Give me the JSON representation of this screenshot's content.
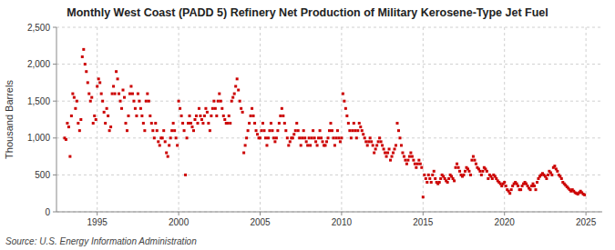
{
  "chart_data": {
    "type": "scatter",
    "title": "Monthly West Coast (PADD 5) Refinery Net Production of Military Kerosene-Type Jet Fuel",
    "y_label": "Thousand Barrels",
    "annotations": [
      "Source: U.S. Energy Information Administration"
    ],
    "color": "#cc0000",
    "marker": "square",
    "grid": true,
    "xlim": [
      1992.5,
      2026.0
    ],
    "ylim": [
      0,
      2500
    ],
    "xticks": [
      1995,
      2000,
      2005,
      2010,
      2015,
      2020,
      2025
    ],
    "yticks": [
      0,
      500,
      {
        "value": 1000,
        "label": "1,000"
      },
      {
        "value": 1500,
        "label": "1,500"
      },
      {
        "value": 2000,
        "label": "2,000"
      },
      {
        "value": 2500,
        "label": "2,500"
      }
    ],
    "x": [
      1993.0,
      1993.083,
      1993.167,
      1993.25,
      1993.333,
      1993.417,
      1993.5,
      1993.583,
      1993.667,
      1993.75,
      1993.833,
      1993.917,
      1994.0,
      1994.083,
      1994.167,
      1994.25,
      1994.333,
      1994.417,
      1994.5,
      1994.583,
      1994.667,
      1994.75,
      1994.833,
      1994.917,
      1995.0,
      1995.083,
      1995.167,
      1995.25,
      1995.333,
      1995.417,
      1995.5,
      1995.583,
      1995.667,
      1995.75,
      1995.833,
      1995.917,
      1996.0,
      1996.083,
      1996.167,
      1996.25,
      1996.333,
      1996.417,
      1996.5,
      1996.583,
      1996.667,
      1996.75,
      1996.833,
      1996.917,
      1997.0,
      1997.083,
      1997.167,
      1997.25,
      1997.333,
      1997.417,
      1997.5,
      1997.583,
      1997.667,
      1997.75,
      1997.833,
      1997.917,
      1998.0,
      1998.083,
      1998.167,
      1998.25,
      1998.333,
      1998.417,
      1998.5,
      1998.583,
      1998.667,
      1998.75,
      1998.833,
      1998.917,
      1999.0,
      1999.083,
      1999.167,
      1999.25,
      1999.333,
      1999.417,
      1999.5,
      1999.583,
      1999.667,
      1999.75,
      1999.833,
      1999.917,
      2000.0,
      2000.083,
      2000.167,
      2000.25,
      2000.333,
      2000.417,
      2000.5,
      2000.583,
      2000.667,
      2000.75,
      2000.833,
      2000.917,
      2001.0,
      2001.083,
      2001.167,
      2001.25,
      2001.333,
      2001.417,
      2001.5,
      2001.583,
      2001.667,
      2001.75,
      2001.833,
      2001.917,
      2002.0,
      2002.083,
      2002.167,
      2002.25,
      2002.333,
      2002.417,
      2002.5,
      2002.583,
      2002.667,
      2002.75,
      2002.833,
      2002.917,
      2003.0,
      2003.083,
      2003.167,
      2003.25,
      2003.333,
      2003.417,
      2003.5,
      2003.583,
      2003.667,
      2003.75,
      2003.833,
      2003.917,
      2004.0,
      2004.083,
      2004.167,
      2004.25,
      2004.333,
      2004.417,
      2004.5,
      2004.583,
      2004.667,
      2004.75,
      2004.833,
      2004.917,
      2005.0,
      2005.083,
      2005.167,
      2005.25,
      2005.333,
      2005.417,
      2005.5,
      2005.583,
      2005.667,
      2005.75,
      2005.833,
      2005.917,
      2006.0,
      2006.083,
      2006.167,
      2006.25,
      2006.333,
      2006.417,
      2006.5,
      2006.583,
      2006.667,
      2006.75,
      2006.833,
      2006.917,
      2007.0,
      2007.083,
      2007.167,
      2007.25,
      2007.333,
      2007.417,
      2007.5,
      2007.583,
      2007.667,
      2007.75,
      2007.833,
      2007.917,
      2008.0,
      2008.083,
      2008.167,
      2008.25,
      2008.333,
      2008.417,
      2008.5,
      2008.583,
      2008.667,
      2008.75,
      2008.833,
      2008.917,
      2009.0,
      2009.083,
      2009.167,
      2009.25,
      2009.333,
      2009.417,
      2009.5,
      2009.583,
      2009.667,
      2009.75,
      2009.833,
      2009.917,
      2010.0,
      2010.083,
      2010.167,
      2010.25,
      2010.333,
      2010.417,
      2010.5,
      2010.583,
      2010.667,
      2010.75,
      2010.833,
      2010.917,
      2011.0,
      2011.083,
      2011.167,
      2011.25,
      2011.333,
      2011.417,
      2011.5,
      2011.583,
      2011.667,
      2011.75,
      2011.833,
      2011.917,
      2012.0,
      2012.083,
      2012.167,
      2012.25,
      2012.333,
      2012.417,
      2012.5,
      2012.583,
      2012.667,
      2012.75,
      2012.833,
      2012.917,
      2013.0,
      2013.083,
      2013.167,
      2013.25,
      2013.333,
      2013.417,
      2013.5,
      2013.583,
      2013.667,
      2013.75,
      2013.833,
      2013.917,
      2014.0,
      2014.083,
      2014.167,
      2014.25,
      2014.333,
      2014.417,
      2014.5,
      2014.583,
      2014.667,
      2014.75,
      2014.833,
      2014.917,
      2015.0,
      2015.083,
      2015.167,
      2015.25,
      2015.333,
      2015.417,
      2015.5,
      2015.583,
      2015.667,
      2015.75,
      2015.833,
      2015.917,
      2016.0,
      2016.083,
      2016.167,
      2016.25,
      2016.333,
      2016.417,
      2016.5,
      2016.583,
      2016.667,
      2016.75,
      2016.833,
      2016.917,
      2017.0,
      2017.083,
      2017.167,
      2017.25,
      2017.333,
      2017.417,
      2017.5,
      2017.583,
      2017.667,
      2017.75,
      2017.833,
      2017.917,
      2018.0,
      2018.083,
      2018.167,
      2018.25,
      2018.333,
      2018.417,
      2018.5,
      2018.583,
      2018.667,
      2018.75,
      2018.833,
      2018.917,
      2019.0,
      2019.083,
      2019.167,
      2019.25,
      2019.333,
      2019.417,
      2019.5,
      2019.583,
      2019.667,
      2019.75,
      2019.833,
      2019.917,
      2020.0,
      2020.083,
      2020.167,
      2020.25,
      2020.333,
      2020.417,
      2020.5,
      2020.583,
      2020.667,
      2020.75,
      2020.833,
      2020.917,
      2021.0,
      2021.083,
      2021.167,
      2021.25,
      2021.333,
      2021.417,
      2021.5,
      2021.583,
      2021.667,
      2021.75,
      2021.833,
      2021.917,
      2022.0,
      2022.083,
      2022.167,
      2022.25,
      2022.333,
      2022.417,
      2022.5,
      2022.583,
      2022.667,
      2022.75,
      2022.833,
      2022.917,
      2023.0,
      2023.083,
      2023.167,
      2023.25,
      2023.333,
      2023.417,
      2023.5,
      2023.583,
      2023.667,
      2023.75,
      2023.833,
      2023.917,
      2024.0,
      2024.083,
      2024.167,
      2024.25,
      2024.333,
      2024.417,
      2024.5,
      2024.583,
      2024.667,
      2024.75,
      2024.833,
      2024.917
    ],
    "values": [
      1000,
      980,
      1200,
      1150,
      750,
      1300,
      1600,
      1550,
      1400,
      1500,
      1200,
      1100,
      1250,
      2100,
      2200,
      2000,
      1900,
      1750,
      1600,
      1500,
      1550,
      1200,
      1300,
      1250,
      1700,
      1800,
      1750,
      1600,
      1500,
      1350,
      1200,
      1400,
      1300,
      1100,
      1150,
      1600,
      1700,
      1600,
      1900,
      1800,
      1600,
      1500,
      1400,
      1650,
      1550,
      1200,
      1100,
      1300,
      1600,
      1700,
      1600,
      1500,
      1400,
      1300,
      1600,
      1500,
      1400,
      1300,
      1200,
      1100,
      1500,
      1600,
      1500,
      1300,
      1200,
      1100,
      1000,
      1200,
      1100,
      950,
      900,
      1000,
      1000,
      1100,
      950,
      800,
      750,
      900,
      1000,
      1100,
      1200,
      1100,
      1000,
      900,
      1500,
      1400,
      1300,
      1200,
      1100,
      500,
      1000,
      1200,
      1300,
      1200,
      1150,
      1100,
      1250,
      1300,
      1200,
      1400,
      1300,
      1250,
      1200,
      1300,
      1400,
      1350,
      1200,
      1100,
      1300,
      1400,
      1500,
      1400,
      1300,
      1500,
      1600,
      1500,
      1400,
      1300,
      1250,
      1200,
      1200,
      1300,
      1200,
      1500,
      1550,
      1600,
      1700,
      1800,
      1650,
      1500,
      1400,
      1350,
      800,
      900,
      1000,
      1100,
      1200,
      1300,
      1400,
      1300,
      1200,
      1100,
      1050,
      1000,
      1000,
      1100,
      1200,
      1100,
      1000,
      900,
      1000,
      1100,
      1200,
      1100,
      1000,
      950,
      1000,
      1100,
      1200,
      1300,
      1400,
      1300,
      1200,
      1100,
      1000,
      900,
      950,
      1000,
      1000,
      1050,
      1100,
      1200,
      1100,
      1000,
      900,
      1000,
      1100,
      1000,
      950,
      900,
      1000,
      900,
      1000,
      1100,
      1000,
      950,
      900,
      1000,
      1100,
      1000,
      950,
      900,
      900,
      950,
      1000,
      1100,
      1200,
      1100,
      1000,
      900,
      1000,
      1100,
      1000,
      950,
      1000,
      1600,
      1500,
      1400,
      1300,
      1200,
      1100,
      1000,
      1100,
      1200,
      1100,
      1000,
      1100,
      1200,
      1150,
      1100,
      1050,
      1000,
      950,
      900,
      950,
      1000,
      950,
      900,
      800,
      850,
      900,
      950,
      1000,
      950,
      900,
      850,
      800,
      750,
      800,
      850,
      700,
      750,
      800,
      850,
      900,
      1200,
      1100,
      1000,
      900,
      800,
      750,
      700,
      650,
      700,
      750,
      800,
      750,
      700,
      650,
      600,
      650,
      700,
      650,
      600,
      200,
      500,
      450,
      400,
      500,
      450,
      400,
      500,
      550,
      450,
      400,
      380,
      400,
      450,
      500,
      480,
      450,
      420,
      400,
      450,
      500,
      480,
      450,
      420,
      600,
      650,
      600,
      550,
      500,
      480,
      500,
      550,
      600,
      580,
      550,
      500,
      700,
      750,
      700,
      650,
      600,
      580,
      550,
      500,
      550,
      600,
      580,
      550,
      450,
      500,
      480,
      450,
      500,
      480,
      450,
      420,
      400,
      380,
      350,
      380,
      400,
      350,
      300,
      280,
      250,
      300,
      350,
      380,
      400,
      380,
      350,
      300,
      300,
      350,
      380,
      400,
      380,
      350,
      320,
      300,
      350,
      380,
      350,
      300,
      400,
      450,
      480,
      500,
      520,
      500,
      480,
      450,
      500,
      550,
      530,
      500,
      600,
      620,
      580,
      550,
      500,
      480,
      450,
      400,
      380,
      360,
      340,
      320,
      300,
      280,
      300,
      280,
      260,
      250,
      240,
      260,
      280,
      260,
      240,
      230
    ]
  }
}
